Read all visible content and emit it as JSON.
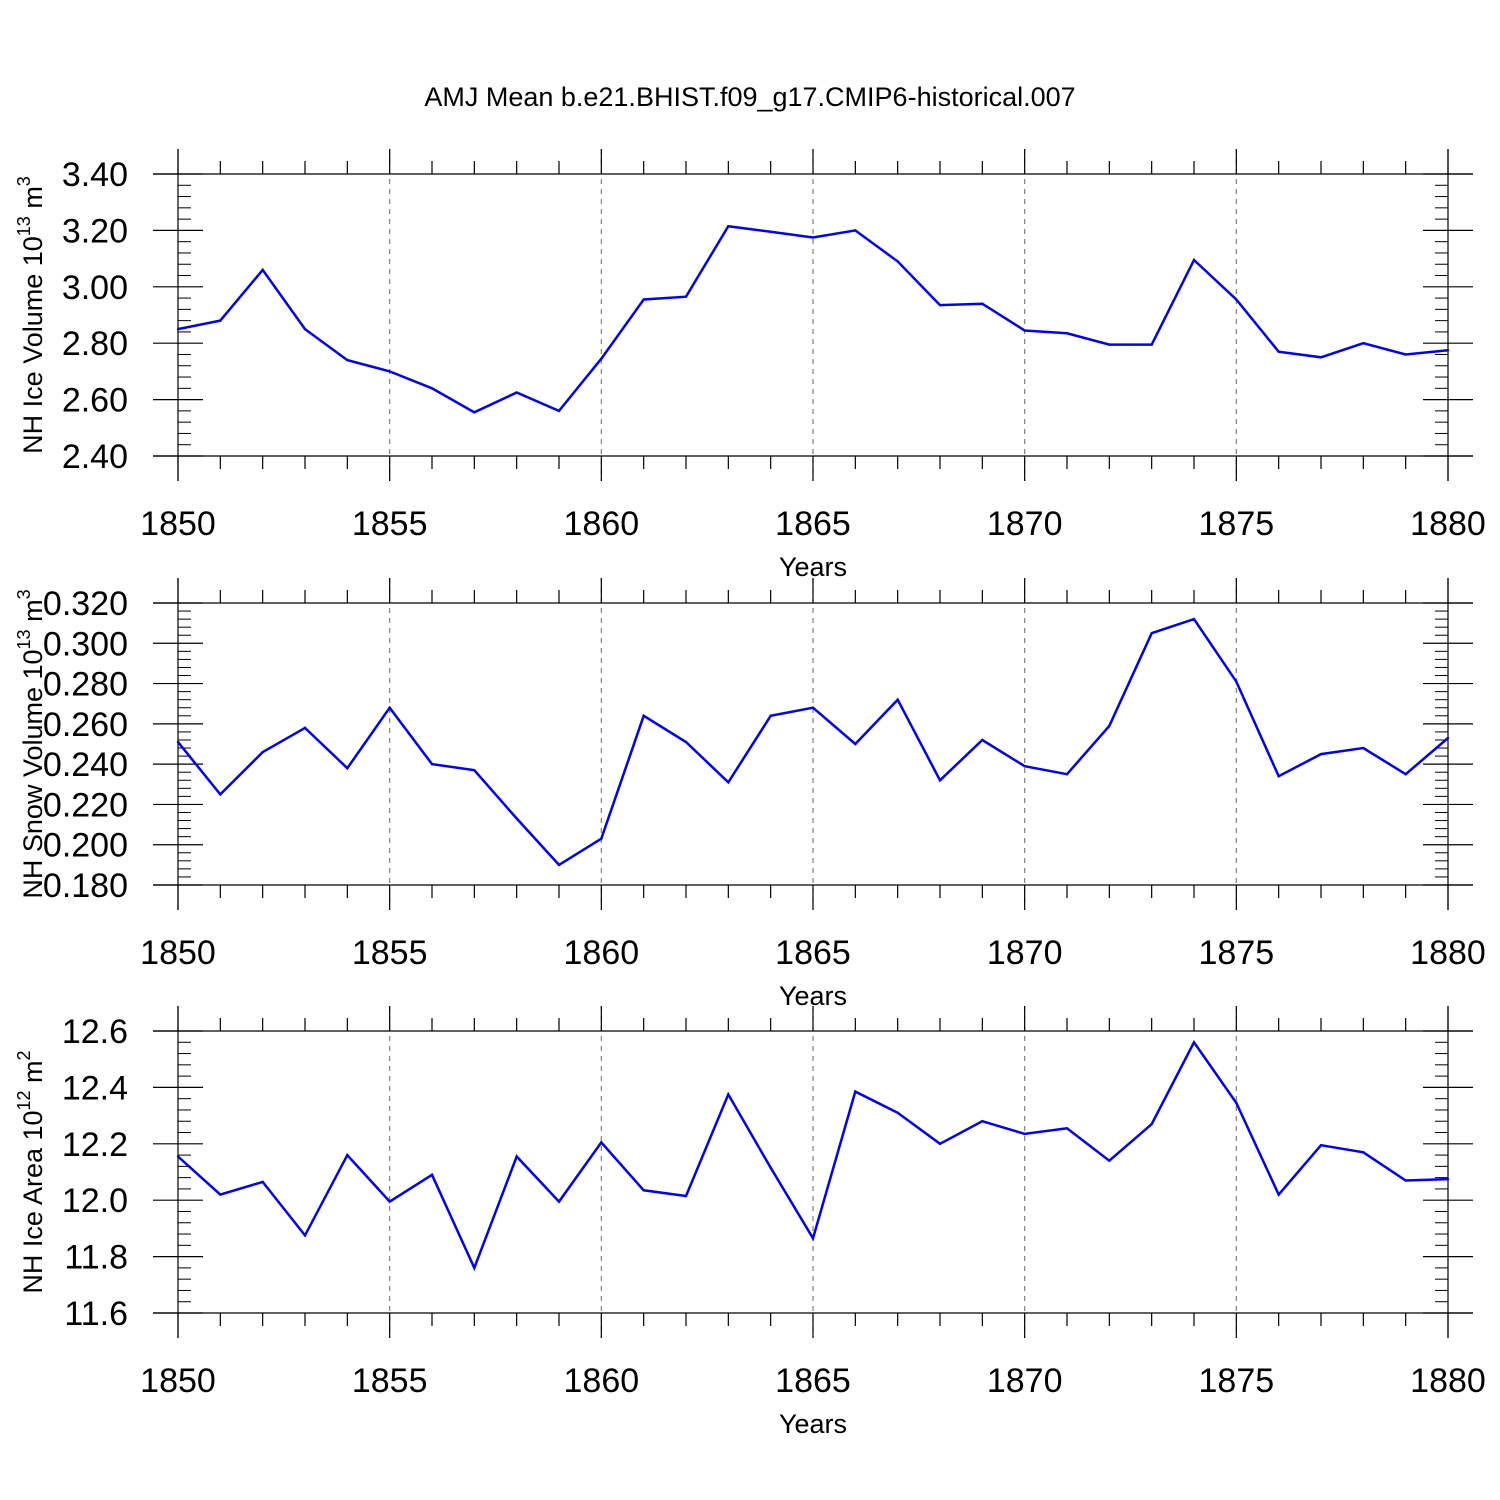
{
  "title": "AMJ Mean b.e21.BHIST.f09_g17.CMIP6-historical.007",
  "colors": {
    "line": "#0000ff",
    "axis": "#000000",
    "grid": "#808080"
  },
  "chart_data": [
    {
      "type": "line",
      "ylabel": "NH Ice Volume 10^13 m^3",
      "ylabel_parts": [
        "NH Ice Volume 10",
        "13",
        " m",
        "3"
      ],
      "xlabel": "Years",
      "xlim": [
        1850,
        1880
      ],
      "ylim": [
        2.4,
        3.4
      ],
      "yticks": [
        "2.40",
        "2.60",
        "2.80",
        "3.00",
        "3.20",
        "3.40"
      ],
      "xticks": [
        "1850",
        "1855",
        "1860",
        "1865",
        "1870",
        "1875",
        "1880"
      ],
      "x": [
        1850,
        1851,
        1852,
        1853,
        1854,
        1855,
        1856,
        1857,
        1858,
        1859,
        1860,
        1861,
        1862,
        1863,
        1864,
        1865,
        1866,
        1867,
        1868,
        1869,
        1870,
        1871,
        1872,
        1873,
        1874,
        1875,
        1876,
        1877,
        1878,
        1879,
        1880
      ],
      "values": [
        2.85,
        2.88,
        3.06,
        2.85,
        2.74,
        2.7,
        2.64,
        2.555,
        2.625,
        2.56,
        2.745,
        2.955,
        2.965,
        3.215,
        3.195,
        3.175,
        3.2,
        3.09,
        2.935,
        2.94,
        2.845,
        2.835,
        2.795,
        2.795,
        3.095,
        2.955,
        2.77,
        2.75,
        2.8,
        2.76,
        2.775
      ]
    },
    {
      "type": "line",
      "ylabel": "NH Snow Volume 10^13 m^3",
      "ylabel_parts": [
        "NH Snow Volume 10",
        "13",
        " m",
        "3"
      ],
      "xlabel": "Years",
      "xlim": [
        1850,
        1880
      ],
      "ylim": [
        0.18,
        0.32
      ],
      "yticks": [
        "0.180",
        "0.200",
        "0.220",
        "0.240",
        "0.260",
        "0.280",
        "0.300",
        "0.320"
      ],
      "xticks": [
        "1850",
        "1855",
        "1860",
        "1865",
        "1870",
        "1875",
        "1880"
      ],
      "x": [
        1850,
        1851,
        1852,
        1853,
        1854,
        1855,
        1856,
        1857,
        1858,
        1859,
        1860,
        1861,
        1862,
        1863,
        1864,
        1865,
        1866,
        1867,
        1868,
        1869,
        1870,
        1871,
        1872,
        1873,
        1874,
        1875,
        1876,
        1877,
        1878,
        1879,
        1880
      ],
      "values": [
        0.251,
        0.225,
        0.246,
        0.258,
        0.238,
        0.268,
        0.24,
        0.237,
        0.213,
        0.19,
        0.203,
        0.264,
        0.251,
        0.231,
        0.264,
        0.268,
        0.25,
        0.272,
        0.232,
        0.252,
        0.239,
        0.235,
        0.259,
        0.305,
        0.312,
        0.281,
        0.234,
        0.245,
        0.248,
        0.235,
        0.253
      ]
    },
    {
      "type": "line",
      "ylabel": "NH Ice Area 10^12 m^2",
      "ylabel_parts": [
        "NH Ice Area 10",
        "12",
        " m",
        "2"
      ],
      "xlabel": "Years",
      "xlim": [
        1850,
        1880
      ],
      "ylim": [
        11.6,
        12.6
      ],
      "yticks": [
        "11.6",
        "11.8",
        "12.0",
        "12.2",
        "12.4",
        "12.6"
      ],
      "xticks": [
        "1850",
        "1855",
        "1860",
        "1865",
        "1870",
        "1875",
        "1880"
      ],
      "x": [
        1850,
        1851,
        1852,
        1853,
        1854,
        1855,
        1856,
        1857,
        1858,
        1859,
        1860,
        1861,
        1862,
        1863,
        1864,
        1865,
        1866,
        1867,
        1868,
        1869,
        1870,
        1871,
        1872,
        1873,
        1874,
        1875,
        1876,
        1877,
        1878,
        1879,
        1880
      ],
      "values": [
        12.155,
        12.02,
        12.065,
        11.875,
        12.16,
        11.995,
        12.09,
        11.76,
        12.155,
        11.995,
        12.205,
        12.035,
        12.015,
        12.375,
        12.115,
        11.865,
        12.385,
        12.31,
        12.2,
        12.28,
        12.235,
        12.255,
        12.14,
        12.27,
        12.56,
        12.345,
        12.02,
        12.195,
        12.17,
        12.07,
        12.075
      ]
    }
  ]
}
